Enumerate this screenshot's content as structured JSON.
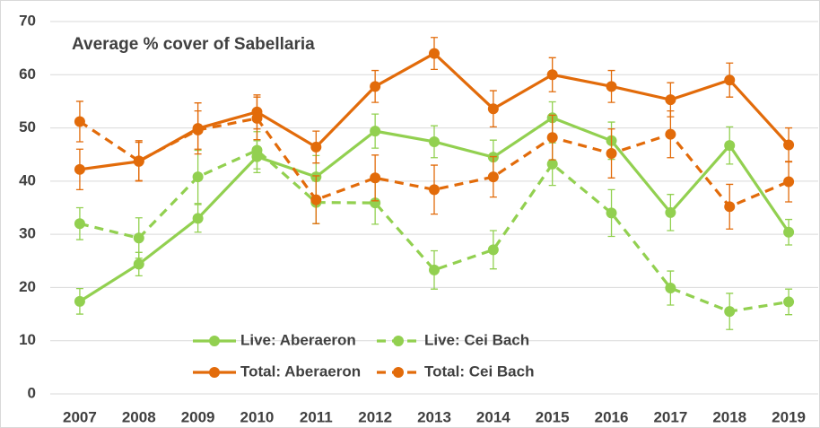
{
  "chart_data": {
    "type": "line",
    "title": "Average % cover of Sabellaria",
    "categories": [
      "2007",
      "2008",
      "2009",
      "2010",
      "2011",
      "2012",
      "2013",
      "2014",
      "2015",
      "2016",
      "2017",
      "2018",
      "2019"
    ],
    "series": [
      {
        "name": "Live: Aberaeron",
        "color": "#92d050",
        "line_style": "solid",
        "values": [
          17.4,
          24.4,
          33.0,
          44.6,
          40.8,
          49.4,
          47.4,
          44.5,
          51.9,
          47.6,
          34.1,
          46.7,
          30.4
        ],
        "errors": [
          2.4,
          2.2,
          2.6,
          3.0,
          4.0,
          3.2,
          3.0,
          3.2,
          3.0,
          3.5,
          3.4,
          3.5,
          2.4
        ]
      },
      {
        "name": "Live: Cei Bach",
        "color": "#92d050",
        "line_style": "dashed",
        "values": [
          32.0,
          29.3,
          40.8,
          45.8,
          36.0,
          35.9,
          23.3,
          27.1,
          43.2,
          34.0,
          19.9,
          15.5,
          17.3
        ],
        "errors": [
          3.0,
          3.8,
          5.0,
          3.5,
          4.0,
          4.0,
          3.6,
          3.6,
          4.0,
          4.4,
          3.2,
          3.4,
          2.4
        ]
      },
      {
        "name": "Total: Aberaeron",
        "color": "#e26b0a",
        "line_style": "solid",
        "values": [
          42.2,
          43.7,
          49.9,
          53.0,
          46.4,
          57.8,
          64.0,
          53.6,
          60.0,
          57.8,
          55.3,
          59.0,
          46.8
        ],
        "errors": [
          3.8,
          3.6,
          4.8,
          3.2,
          3.0,
          3.0,
          3.0,
          3.4,
          3.2,
          3.0,
          3.2,
          3.2,
          3.2
        ]
      },
      {
        "name": "Total: Cei Bach",
        "color": "#e26b0a",
        "line_style": "dashed",
        "values": [
          51.2,
          43.8,
          49.6,
          51.8,
          36.5,
          40.6,
          38.4,
          40.8,
          48.2,
          45.2,
          48.8,
          35.2,
          39.9
        ],
        "errors": [
          3.8,
          3.8,
          3.6,
          4.0,
          4.5,
          4.3,
          4.6,
          3.8,
          4.2,
          4.6,
          4.4,
          4.2,
          3.8
        ]
      }
    ],
    "ylim": [
      0,
      70
    ],
    "yticks": [
      0,
      10,
      20,
      30,
      40,
      50,
      60,
      70
    ],
    "grid": true
  }
}
